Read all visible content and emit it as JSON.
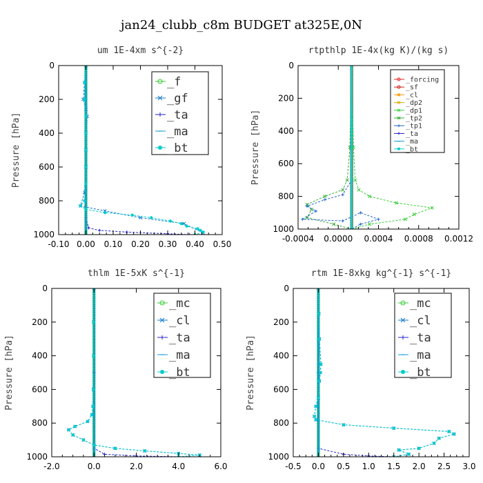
{
  "title": "jan24_clubb_c8m  BUDGET at325E,0N",
  "colors": {
    "f": "#33cc33",
    "gf": "#1177cc",
    "ta": "#2222cc",
    "ma": "#1199dd",
    "bt": "#00cccc",
    "mc": "#33cc33",
    "cl": "#1177cc",
    "forcing": "#ee2222",
    "sf": "#cc2222",
    "cl_r": "#ff9900",
    "dp2": "#ddaa00",
    "dp1": "#33cc33",
    "tp2": "#33aa33",
    "tp1": "#2266cc"
  },
  "chart_data": [
    {
      "type": "line",
      "title": "um  1E-4xm s^{-2}",
      "ylabel": "Pressure [hPa]",
      "xlim": [
        -0.1,
        0.5
      ],
      "ylim": [
        1000,
        0
      ],
      "xticks": [
        "-0.10",
        "0.00",
        "0.10",
        "0.20",
        "0.30",
        "0.40",
        "0.50"
      ],
      "yticks": [
        "0",
        "200",
        "400",
        "600",
        "800",
        "1000"
      ],
      "series": [
        {
          "name": "_f",
          "color": "#33cc33",
          "marker": "circle",
          "x": [
            0.0,
            0.0,
            0.0,
            0.0,
            0.0,
            0.0,
            0.0,
            0.0,
            0.0,
            0.0,
            0.0,
            0.0,
            0.0
          ],
          "y": [
            0,
            100,
            200,
            300,
            400,
            500,
            600,
            700,
            800,
            850,
            900,
            950,
            1000
          ]
        },
        {
          "name": "_gf",
          "color": "#1177cc",
          "marker": "x",
          "x": [
            0.0,
            -0.005,
            -0.01,
            0.0,
            0.005,
            0.0,
            0.0,
            0.0,
            -0.005,
            -0.02,
            0.07,
            0.2,
            0.36,
            0.43
          ],
          "y": [
            0,
            100,
            200,
            260,
            300,
            400,
            500,
            600,
            750,
            830,
            860,
            900,
            935,
            990
          ]
        },
        {
          "name": "_ta",
          "color": "#2222cc",
          "marker": "plus",
          "x": [
            0.0,
            0.0,
            0.0,
            0.01,
            0.05,
            0.15,
            0.3,
            0.38
          ],
          "y": [
            0,
            500,
            900,
            960,
            975,
            985,
            995,
            1000
          ]
        },
        {
          "name": "_ma",
          "color": "#1199dd",
          "marker": "dash",
          "x": [
            0.0,
            0.0,
            0.0,
            0.0,
            0.0
          ],
          "y": [
            0,
            250,
            500,
            750,
            1000
          ]
        },
        {
          "name": "_bt",
          "color": "#00cccc",
          "marker": "dot",
          "x": [
            0.0,
            -0.005,
            -0.005,
            0.0,
            0.0,
            0.0,
            0.0,
            0.0,
            -0.005,
            -0.02,
            0.0,
            0.07,
            0.17,
            0.24,
            0.31,
            0.35,
            0.37,
            0.41,
            0.42,
            0.43,
            0.4
          ],
          "y": [
            0,
            100,
            200,
            300,
            400,
            500,
            600,
            700,
            800,
            830,
            850,
            870,
            885,
            900,
            920,
            935,
            950,
            965,
            975,
            985,
            1000
          ]
        }
      ],
      "legend": {
        "placement": "top-right",
        "entries": [
          "_f",
          "_gf",
          "_ta",
          "_ma",
          "_bt"
        ]
      }
    },
    {
      "type": "line",
      "title": "rtpthlp  1E-4x(kg K)/(kg s)",
      "ylabel": "Pressure [hPa]",
      "xlim": [
        -0.0006,
        0.0012
      ],
      "ylim": [
        1000,
        0
      ],
      "xticks": [
        "-0.0004",
        "0.0000",
        "0.0004",
        "0.0008",
        "0.0012"
      ],
      "yticks": [
        "0",
        "200",
        "400",
        "600",
        "800",
        "1000"
      ],
      "series": [
        {
          "name": "_forcing",
          "color": "#ee2222",
          "marker": "circle",
          "x": [
            0,
            0,
            0,
            0,
            0,
            0,
            0,
            0,
            0,
            0,
            0
          ],
          "y": [
            0,
            100,
            200,
            300,
            400,
            500,
            600,
            700,
            800,
            900,
            1000
          ]
        },
        {
          "name": "_sf",
          "color": "#cc2222",
          "marker": "circle",
          "x": [
            0,
            0,
            0,
            0,
            0
          ],
          "y": [
            0,
            250,
            500,
            750,
            1000
          ]
        },
        {
          "name": "_cl",
          "color": "#ff9900",
          "marker": "star",
          "x": [
            0,
            0,
            0,
            0,
            0
          ],
          "y": [
            0,
            250,
            500,
            750,
            1000
          ]
        },
        {
          "name": "_dp2",
          "color": "#ddaa00",
          "marker": "x",
          "x": [
            0,
            0,
            0,
            0,
            0
          ],
          "y": [
            0,
            250,
            500,
            750,
            1000
          ]
        },
        {
          "name": "_dp1",
          "color": "#33cc33",
          "marker": "x",
          "x": [
            0.0,
            2e-05,
            4e-05,
            8e-05,
            0.0002,
            0.0005,
            0.0009,
            0.0007,
            0.0006,
            0.0002,
            0.0
          ],
          "y": [
            0,
            500,
            700,
            760,
            800,
            840,
            870,
            910,
            940,
            970,
            1000
          ]
        },
        {
          "name": "_tp2",
          "color": "#33aa33",
          "marker": "x",
          "x": [
            0.0,
            -2e-05,
            -5e-05,
            -0.0001,
            -0.0003,
            -0.0005,
            -0.00045,
            -0.0005,
            -0.0002,
            0.0
          ],
          "y": [
            0,
            500,
            700,
            760,
            800,
            850,
            880,
            930,
            970,
            1000
          ]
        },
        {
          "name": "_tp1",
          "color": "#2266cc",
          "marker": "plus",
          "x": [
            0.0,
            0.0,
            -0.0001,
            -0.0003,
            -0.0005,
            -0.0004,
            -0.00055,
            -0.0001,
            0.0001,
            0.0003,
            0.0001,
            0.0
          ],
          "y": [
            0,
            700,
            790,
            820,
            860,
            890,
            940,
            950,
            900,
            940,
            970,
            1000
          ]
        },
        {
          "name": "_ta",
          "color": "#2222cc",
          "marker": "plus",
          "x": [
            0,
            0,
            0,
            0,
            0
          ],
          "y": [
            0,
            250,
            500,
            750,
            1000
          ]
        },
        {
          "name": "_ma",
          "color": "#1199dd",
          "marker": "dash",
          "x": [
            0,
            0,
            0,
            0,
            0
          ],
          "y": [
            0,
            250,
            500,
            750,
            1000
          ]
        },
        {
          "name": "_bt",
          "color": "#00cccc",
          "marker": "dot",
          "x": [
            0,
            0,
            0,
            0,
            0,
            0,
            0,
            0,
            0,
            0,
            0
          ],
          "y": [
            0,
            100,
            200,
            300,
            400,
            500,
            600,
            700,
            800,
            900,
            1000
          ]
        }
      ],
      "legend": {
        "placement": "top-right",
        "entries": [
          "_forcing",
          "_sf",
          "_cl",
          "_dp2",
          "_dp1",
          "_tp2",
          "_tp1",
          "_ta",
          "_ma",
          "_bt"
        ]
      }
    },
    {
      "type": "line",
      "title": "thlm  1E-5xK s^{-1}",
      "ylabel": "Pressure [hPa]",
      "xlim": [
        -2.0,
        6.0
      ],
      "ylim": [
        1000,
        0
      ],
      "xticks": [
        "-2.0",
        "0.0",
        "2.0",
        "4.0",
        "6.0"
      ],
      "yticks": [
        "0",
        "200",
        "400",
        "600",
        "800",
        "1000"
      ],
      "series": [
        {
          "name": "_mc",
          "color": "#33cc33",
          "marker": "circle",
          "x": [
            0,
            0,
            0,
            0,
            0,
            0,
            0,
            0,
            0,
            0,
            0,
            0,
            0
          ],
          "y": [
            0,
            100,
            200,
            300,
            400,
            500,
            600,
            700,
            800,
            850,
            900,
            950,
            1000
          ]
        },
        {
          "name": "_cl",
          "color": "#1177cc",
          "marker": "x",
          "x": [
            0.0,
            -0.02,
            -0.02,
            -0.03,
            -0.05,
            -0.1,
            -0.3,
            -0.9,
            -1.2,
            -1.0,
            -0.5,
            0.0,
            1.0,
            2.4,
            4.0,
            5.0
          ],
          "y": [
            0,
            200,
            400,
            600,
            700,
            750,
            790,
            820,
            840,
            870,
            900,
            930,
            950,
            965,
            980,
            990
          ]
        },
        {
          "name": "_ta",
          "color": "#2222cc",
          "marker": "plus",
          "x": [
            0,
            0,
            0,
            0.5,
            2.0,
            4.0
          ],
          "y": [
            0,
            500,
            950,
            985,
            995,
            1000
          ]
        },
        {
          "name": "_ma",
          "color": "#1199dd",
          "marker": "dash",
          "x": [
            0,
            0,
            0,
            0,
            0
          ],
          "y": [
            0,
            250,
            500,
            750,
            1000
          ]
        },
        {
          "name": "_bt",
          "color": "#00cccc",
          "marker": "dot",
          "x": [
            0.0,
            -0.02,
            -0.02,
            -0.03,
            -0.05,
            -0.1,
            -0.3,
            -0.9,
            -1.2,
            -1.0,
            -0.5,
            0.0,
            1.0,
            2.4,
            4.0,
            5.0,
            4.0
          ],
          "y": [
            0,
            200,
            400,
            600,
            700,
            750,
            790,
            820,
            840,
            870,
            900,
            930,
            950,
            965,
            980,
            990,
            1000
          ]
        }
      ],
      "legend": {
        "placement": "top-right",
        "entries": [
          "_mc",
          "_cl",
          "_ta",
          "_ma",
          "_bt"
        ]
      }
    },
    {
      "type": "line",
      "title": "rtm  1E-8xkg kg^{-1} s^{-1}",
      "ylabel": "Pressure [hPa]",
      "xlim": [
        -0.5,
        3.0
      ],
      "ylim": [
        1000,
        0
      ],
      "xticks": [
        "-0.5",
        "0.0",
        "0.5",
        "1.0",
        "1.5",
        "2.0",
        "2.5",
        "3.0"
      ],
      "yticks": [
        "0",
        "200",
        "400",
        "600",
        "800",
        "1000"
      ],
      "series": [
        {
          "name": "_mc",
          "color": "#33cc33",
          "marker": "circle",
          "x": [
            0,
            0,
            0,
            0,
            0,
            0,
            0,
            0,
            0,
            0,
            0,
            0,
            0
          ],
          "y": [
            0,
            100,
            200,
            300,
            400,
            500,
            600,
            700,
            800,
            850,
            900,
            950,
            1000
          ]
        },
        {
          "name": "_cl",
          "color": "#1177cc",
          "marker": "x",
          "x": [
            0.0,
            0.01,
            0.02,
            0.05,
            0.04,
            0.02,
            0.0,
            -0.05,
            -0.08,
            -0.05,
            0.5,
            1.5,
            2.6,
            2.7,
            2.4,
            2.3,
            2.0,
            1.6,
            1.8,
            1.5
          ],
          "y": [
            0,
            150,
            300,
            450,
            500,
            550,
            650,
            700,
            760,
            780,
            810,
            830,
            850,
            865,
            890,
            920,
            950,
            960,
            985,
            1000
          ]
        },
        {
          "name": "_ta",
          "color": "#2222cc",
          "marker": "plus",
          "x": [
            0,
            0,
            0,
            0.5,
            1.0,
            1.5
          ],
          "y": [
            0,
            500,
            950,
            985,
            995,
            1000
          ]
        },
        {
          "name": "_ma",
          "color": "#1199dd",
          "marker": "dash",
          "x": [
            0,
            0,
            0,
            0,
            0
          ],
          "y": [
            0,
            250,
            500,
            750,
            1000
          ]
        },
        {
          "name": "_bt",
          "color": "#00cccc",
          "marker": "dot",
          "x": [
            0.0,
            0.01,
            0.02,
            0.05,
            0.04,
            0.02,
            0.0,
            -0.05,
            -0.08,
            -0.05,
            0.5,
            1.5,
            2.6,
            2.7,
            2.4,
            2.3,
            2.0,
            1.6,
            1.8,
            1.5
          ],
          "y": [
            0,
            150,
            300,
            450,
            500,
            550,
            650,
            700,
            760,
            780,
            810,
            830,
            850,
            865,
            890,
            920,
            950,
            960,
            985,
            1000
          ]
        }
      ],
      "legend": {
        "placement": "top-right",
        "entries": [
          "_mc",
          "_cl",
          "_ta",
          "_ma",
          "_bt"
        ]
      }
    }
  ]
}
